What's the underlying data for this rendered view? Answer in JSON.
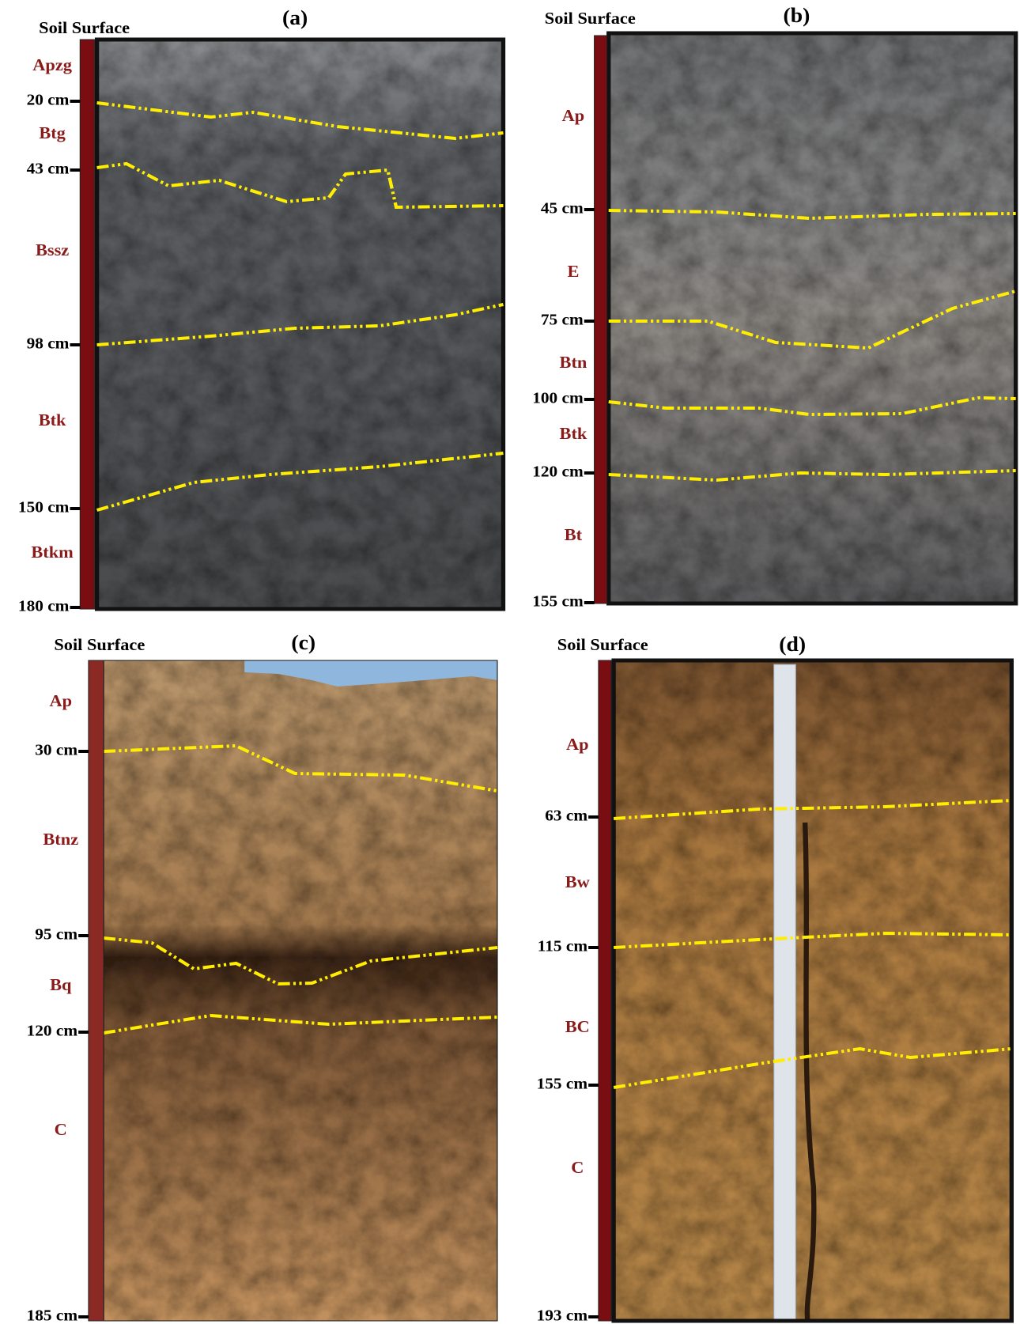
{
  "panels": [
    {
      "title": "(a)",
      "surface_label": "Soil Surface",
      "depths": [
        "20 cm",
        "43 cm",
        "98 cm",
        "150 cm",
        "180 cm"
      ],
      "horizons": [
        "Apzg",
        "Btg",
        "Bssz",
        "Btk",
        "Btkm"
      ]
    },
    {
      "title": "(b)",
      "surface_label": "Soil Surface",
      "depths": [
        "45 cm",
        "75 cm",
        "100 cm",
        "120 cm",
        "155 cm"
      ],
      "horizons": [
        "Ap",
        "E",
        "Btn",
        "Btk",
        "Bt"
      ]
    },
    {
      "title": "(c)",
      "surface_label": "Soil Surface",
      "depths": [
        "30 cm",
        "95 cm",
        "120 cm",
        "185 cm"
      ],
      "horizons": [
        "Ap",
        "Btnz",
        "Bq",
        "C"
      ]
    },
    {
      "title": "(d)",
      "surface_label": "Soil Surface",
      "depths": [
        "63 cm",
        "115 cm",
        "155 cm",
        "193 cm"
      ],
      "horizons": [
        "Ap",
        "Bw",
        "BC",
        "C"
      ]
    }
  ]
}
